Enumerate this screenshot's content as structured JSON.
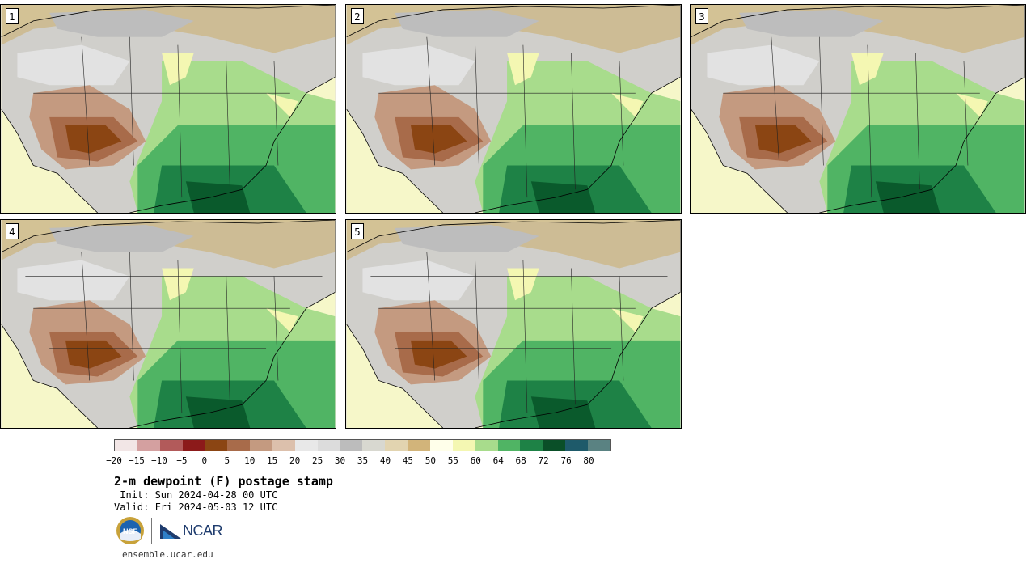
{
  "panels": [
    {
      "label": "1"
    },
    {
      "label": "2"
    },
    {
      "label": "3"
    },
    {
      "label": "4"
    },
    {
      "label": "5"
    }
  ],
  "colorbar": {
    "ticks": [
      "-20",
      "-15",
      "-10",
      "-5",
      "0",
      "5",
      "10",
      "15",
      "20",
      "25",
      "30",
      "35",
      "40",
      "45",
      "50",
      "55",
      "60",
      "64",
      "68",
      "72",
      "76",
      "80"
    ],
    "colors": [
      "#f2e6e6",
      "#d4a0a0",
      "#b25a5a",
      "#8c1a1a",
      "#8b4513",
      "#a86b4a",
      "#c49a80",
      "#dcc0ac",
      "#e8e8e8",
      "#dcdcdc",
      "#bcbcbc",
      "#d8d8d0",
      "#e2d4b0",
      "#d2b47a",
      "#ffffea",
      "#f4f7b2",
      "#a8dc8c",
      "#50b464",
      "#1e8246",
      "#0a4f28",
      "#1e5a6a",
      "#5a8282"
    ]
  },
  "title": "2-m dewpoint (F) postage stamp",
  "init": " Init: Sun 2024-04-28 00 UTC",
  "valid": "Valid: Fri 2024-05-03 12 UTC",
  "logos": {
    "nsf_text": "NSF",
    "ncar_text": "NCAR"
  },
  "site": "ensemble.ucar.edu"
}
